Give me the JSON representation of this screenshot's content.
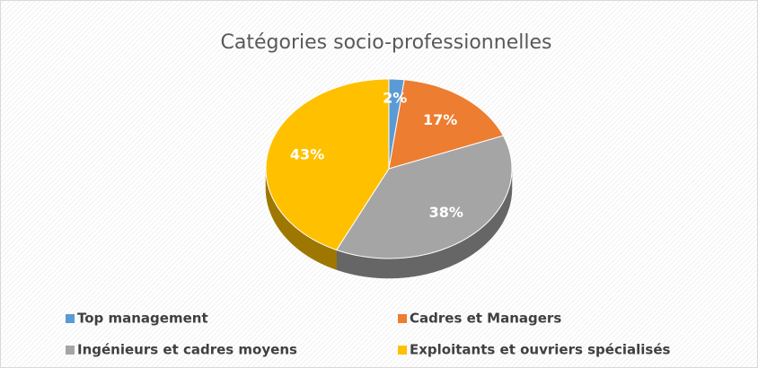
{
  "chart_data": {
    "type": "pie",
    "title": "Catégories socio-professionnelles",
    "categories": [
      "Top management",
      "Cadres et Managers",
      "Ingénieurs et cadres moyens",
      "Exploitants et ouvriers spécialisés"
    ],
    "values": [
      2,
      17,
      38,
      43
    ],
    "value_labels": [
      "2%",
      "17%",
      "38%",
      "43%"
    ],
    "colors": [
      "#5b9bd5",
      "#ed7d31",
      "#a5a5a5",
      "#ffc000"
    ],
    "legend": "bottom"
  }
}
